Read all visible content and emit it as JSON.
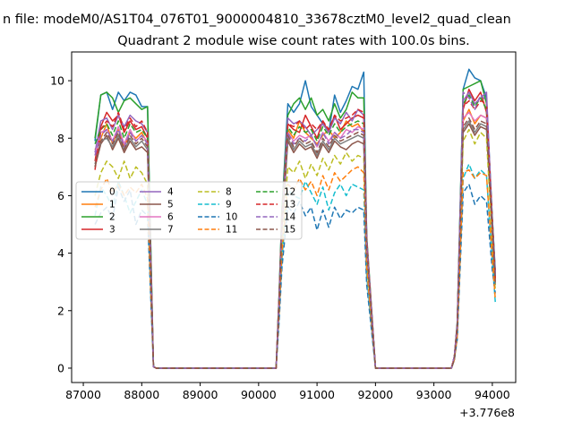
{
  "chart_data": {
    "type": "line",
    "suptitle": "n file: modeM0/AS1T04_076T01_9000004810_33678cztM0_level2_quad_clean",
    "title": "Quadrant 2 module wise count rates with 100.0s bins.",
    "xlabel": "",
    "ylabel": "",
    "x_offset_label": "+3.776e8",
    "xlim": [
      86800,
      94400
    ],
    "ylim": [
      -0.5,
      11.0
    ],
    "x_ticks": [
      87000,
      88000,
      89000,
      90000,
      91000,
      92000,
      93000,
      94000
    ],
    "x_tick_labels": [
      "87000",
      "88000",
      "89000",
      "90000",
      "91000",
      "92000",
      "93000",
      "94000"
    ],
    "y_ticks": [
      0,
      2,
      4,
      6,
      8,
      10
    ],
    "y_tick_labels": [
      "0",
      "2",
      "4",
      "6",
      "8",
      "10"
    ],
    "grid": false,
    "legend_position": "center-left",
    "legend_columns": 4,
    "x": [
      87200,
      87300,
      87400,
      87500,
      87600,
      87700,
      87800,
      87900,
      88000,
      88100,
      88200,
      88250,
      88400,
      89000,
      90000,
      90300,
      90350,
      90400,
      90500,
      90600,
      90700,
      90800,
      90900,
      91000,
      91100,
      91200,
      91300,
      91400,
      91500,
      91600,
      91700,
      91800,
      91850,
      92000,
      92500,
      93000,
      93300,
      93350,
      93400,
      93500,
      93600,
      93700,
      93800,
      93900,
      94000,
      94050
    ],
    "series": [
      {
        "name": "0",
        "color": "#1f77b4",
        "dash": "solid",
        "values": [
          7.9,
          9.5,
          9.6,
          9.0,
          9.6,
          9.3,
          9.6,
          9.5,
          9.1,
          9.1,
          0.05,
          0,
          0,
          0,
          0,
          0,
          2.5,
          5.5,
          9.2,
          8.9,
          9.2,
          10.0,
          9.1,
          8.8,
          8.5,
          8.2,
          9.5,
          8.9,
          9.3,
          9.8,
          9.7,
          10.3,
          4.5,
          0,
          0,
          0,
          0,
          0.4,
          1.6,
          9.7,
          10.4,
          10.1,
          10.0,
          9.4,
          5.2,
          3.4
        ]
      },
      {
        "name": "1",
        "color": "#ff7f0e",
        "dash": "solid",
        "values": [
          7.6,
          8.0,
          8.5,
          7.8,
          8.3,
          7.7,
          8.2,
          8.0,
          8.2,
          7.8,
          0.05,
          0,
          0,
          0,
          0,
          0,
          2.3,
          5.0,
          8.3,
          8.0,
          8.6,
          8.2,
          8.0,
          7.8,
          8.1,
          8.3,
          8.0,
          8.2,
          8.6,
          8.4,
          8.5,
          8.2,
          4.2,
          0,
          0,
          0,
          0,
          0.4,
          1.4,
          8.6,
          9.0,
          8.5,
          8.8,
          8.7,
          4.9,
          3.0
        ]
      },
      {
        "name": "2",
        "color": "#2ca02c",
        "dash": "solid",
        "values": [
          8.0,
          9.5,
          9.6,
          9.4,
          8.9,
          9.3,
          9.4,
          9.2,
          9.0,
          9.1,
          0.05,
          0,
          0,
          0,
          0,
          0,
          2.5,
          5.5,
          8.8,
          9.2,
          9.4,
          9.0,
          9.4,
          8.8,
          9.0,
          8.6,
          9.2,
          8.7,
          9.0,
          9.6,
          9.4,
          9.4,
          4.6,
          0,
          0,
          0,
          0,
          0.4,
          1.5,
          9.7,
          9.8,
          9.9,
          10.0,
          9.2,
          5.2,
          3.3
        ]
      },
      {
        "name": "3",
        "color": "#d62728",
        "dash": "solid",
        "values": [
          7.2,
          8.4,
          8.9,
          8.6,
          8.8,
          8.2,
          8.6,
          8.3,
          8.4,
          8.0,
          0.05,
          0,
          0,
          0,
          0,
          0,
          2.4,
          5.2,
          8.5,
          8.3,
          8.2,
          8.8,
          8.4,
          8.0,
          8.6,
          8.2,
          8.8,
          8.3,
          8.5,
          8.7,
          8.8,
          8.7,
          4.4,
          0,
          0,
          0,
          0,
          0.4,
          1.5,
          9.0,
          9.7,
          9.3,
          9.6,
          8.9,
          5.0,
          3.2
        ]
      },
      {
        "name": "4",
        "color": "#9467bd",
        "dash": "solid",
        "values": [
          7.5,
          8.6,
          8.7,
          8.3,
          8.8,
          8.4,
          8.8,
          8.6,
          8.5,
          8.2,
          0.05,
          0,
          0,
          0,
          0,
          0,
          2.4,
          5.2,
          8.7,
          8.5,
          8.6,
          8.4,
          8.1,
          8.3,
          8.5,
          8.2,
          8.7,
          8.5,
          8.9,
          8.6,
          9.0,
          8.8,
          4.5,
          0,
          0,
          0,
          0,
          0.4,
          1.5,
          9.3,
          9.6,
          9.2,
          9.4,
          9.6,
          5.0,
          3.3
        ]
      },
      {
        "name": "5",
        "color": "#8c564b",
        "dash": "solid",
        "values": [
          7.0,
          7.8,
          8.1,
          7.6,
          8.0,
          7.5,
          7.9,
          7.6,
          7.7,
          7.5,
          0.05,
          0,
          0,
          0,
          0,
          0,
          2.2,
          4.8,
          7.9,
          7.5,
          7.8,
          7.6,
          7.7,
          7.3,
          7.8,
          7.5,
          7.9,
          7.7,
          7.6,
          7.8,
          7.9,
          7.8,
          4.0,
          0,
          0,
          0,
          0,
          0.3,
          1.4,
          8.2,
          8.5,
          8.1,
          8.4,
          8.3,
          4.6,
          2.9
        ]
      },
      {
        "name": "6",
        "color": "#e377c2",
        "dash": "solid",
        "values": [
          7.4,
          8.2,
          8.3,
          7.9,
          8.4,
          7.8,
          8.3,
          7.9,
          8.1,
          7.9,
          0.05,
          0,
          0,
          0,
          0,
          0,
          2.3,
          5.0,
          8.2,
          7.9,
          8.1,
          8.0,
          8.1,
          7.7,
          8.2,
          7.9,
          8.2,
          8.0,
          8.3,
          8.2,
          8.4,
          8.3,
          4.2,
          0,
          0,
          0,
          0,
          0.4,
          1.4,
          8.7,
          8.9,
          8.6,
          8.8,
          8.7,
          4.8,
          3.0
        ]
      },
      {
        "name": "7",
        "color": "#7f7f7f",
        "dash": "solid",
        "values": [
          7.1,
          7.9,
          8.0,
          7.7,
          8.1,
          7.6,
          8.0,
          7.7,
          7.9,
          7.6,
          0.05,
          0,
          0,
          0,
          0,
          0,
          2.2,
          4.9,
          8.0,
          7.6,
          7.9,
          7.7,
          7.8,
          7.4,
          7.9,
          7.6,
          8.0,
          7.8,
          7.9,
          8.0,
          8.1,
          8.0,
          4.1,
          0,
          0,
          0,
          0,
          0.3,
          1.4,
          8.3,
          8.6,
          8.2,
          8.5,
          8.4,
          4.7,
          2.9
        ]
      },
      {
        "name": "8",
        "color": "#bcbd22",
        "dash": "dashed",
        "values": [
          6.0,
          6.8,
          7.2,
          7.0,
          6.6,
          7.2,
          6.6,
          7.0,
          6.8,
          6.4,
          0.05,
          0,
          0,
          0,
          0,
          0,
          2.0,
          4.2,
          7.0,
          6.8,
          7.2,
          6.6,
          7.1,
          6.7,
          7.3,
          6.9,
          7.4,
          7.1,
          7.5,
          7.2,
          7.4,
          7.3,
          3.7,
          0,
          0,
          0,
          0,
          0.3,
          1.2,
          7.9,
          8.3,
          7.8,
          8.2,
          8.0,
          4.3,
          2.7
        ]
      },
      {
        "name": "9",
        "color": "#17becf",
        "dash": "dashed",
        "values": [
          5.3,
          6.3,
          6.0,
          5.6,
          6.5,
          6.0,
          5.4,
          5.8,
          6.2,
          5.7,
          0.05,
          0,
          0,
          0,
          0,
          0,
          1.8,
          3.8,
          6.2,
          6.0,
          5.9,
          6.5,
          6.1,
          5.7,
          6.3,
          5.5,
          6.1,
          6.4,
          6.0,
          6.4,
          6.3,
          6.2,
          3.2,
          0,
          0,
          0,
          0,
          0.3,
          1.1,
          6.6,
          7.1,
          6.6,
          6.9,
          6.7,
          3.7,
          2.3
        ]
      },
      {
        "name": "10",
        "color": "#1f77b4",
        "dash": "dashed",
        "values": [
          5.0,
          5.4,
          5.6,
          5.2,
          6.3,
          5.8,
          6.2,
          5.0,
          5.5,
          5.3,
          0.05,
          0,
          0,
          0,
          0,
          0,
          1.6,
          3.5,
          5.6,
          5.4,
          5.8,
          5.3,
          5.6,
          4.8,
          5.5,
          4.9,
          5.6,
          5.2,
          5.5,
          5.4,
          5.6,
          5.5,
          2.9,
          0,
          0,
          0,
          0,
          0.3,
          1.0,
          6.1,
          6.4,
          5.7,
          6.0,
          5.8,
          3.4,
          2.6
        ]
      },
      {
        "name": "11",
        "color": "#ff7f0e",
        "dash": "dashed",
        "values": [
          5.6,
          6.2,
          6.6,
          6.1,
          6.4,
          6.0,
          6.3,
          6.1,
          6.4,
          5.9,
          0.05,
          0,
          0,
          0,
          0,
          0,
          1.9,
          4.0,
          6.4,
          6.2,
          6.6,
          6.2,
          6.5,
          6.0,
          6.7,
          6.2,
          6.8,
          6.5,
          6.7,
          6.9,
          7.0,
          6.8,
          3.5,
          0,
          0,
          0,
          0,
          0.3,
          1.1,
          6.8,
          6.9,
          6.6,
          6.8,
          6.7,
          3.8,
          2.4
        ]
      },
      {
        "name": "12",
        "color": "#2ca02c",
        "dash": "dashed",
        "values": [
          7.8,
          8.3,
          8.5,
          8.1,
          8.6,
          8.0,
          8.5,
          8.2,
          8.3,
          8.0,
          0.05,
          0,
          0,
          0,
          0,
          0,
          2.4,
          5.1,
          8.4,
          8.1,
          8.4,
          8.2,
          8.3,
          7.9,
          8.4,
          8.1,
          8.5,
          8.2,
          8.4,
          8.5,
          8.6,
          8.5,
          4.3,
          0,
          0,
          0,
          0,
          0.4,
          1.5,
          9.2,
          9.5,
          9.1,
          9.4,
          9.0,
          5.0,
          3.1
        ]
      },
      {
        "name": "13",
        "color": "#d62728",
        "dash": "dashed",
        "values": [
          6.9,
          8.3,
          8.6,
          8.4,
          8.9,
          8.3,
          8.7,
          8.4,
          8.6,
          8.2,
          0.05,
          0,
          0,
          0,
          0,
          0,
          2.4,
          5.1,
          8.5,
          8.4,
          8.6,
          8.3,
          8.5,
          8.3,
          8.6,
          8.3,
          8.8,
          8.6,
          8.7,
          8.8,
          9.0,
          8.9,
          4.4,
          0,
          0,
          0,
          0,
          0.4,
          1.5,
          9.1,
          9.3,
          9.0,
          9.3,
          9.2,
          5.1,
          3.1
        ]
      },
      {
        "name": "14",
        "color": "#9467bd",
        "dash": "dashed",
        "values": [
          7.4,
          8.1,
          8.3,
          7.9,
          8.3,
          7.7,
          8.2,
          7.9,
          8.1,
          7.8,
          0.05,
          0,
          0,
          0,
          0,
          0,
          2.3,
          5.0,
          8.2,
          7.8,
          8.0,
          7.9,
          8.1,
          7.7,
          8.2,
          7.8,
          8.2,
          8.0,
          8.1,
          8.3,
          8.3,
          8.2,
          4.2,
          0,
          0,
          0,
          0,
          0.4,
          1.4,
          9.6,
          9.4,
          9.0,
          9.5,
          9.3,
          5.0,
          3.2
        ]
      },
      {
        "name": "15",
        "color": "#8c564b",
        "dash": "dashed",
        "values": [
          7.0,
          7.9,
          8.2,
          7.8,
          8.2,
          7.6,
          8.1,
          7.8,
          8.0,
          7.7,
          0.05,
          0,
          0,
          0,
          0,
          0,
          2.2,
          4.9,
          8.1,
          7.7,
          8.0,
          7.8,
          7.9,
          7.5,
          8.0,
          7.7,
          8.1,
          7.9,
          8.0,
          8.1,
          8.2,
          8.1,
          4.1,
          0,
          0,
          0,
          0,
          0.3,
          1.4,
          8.4,
          8.7,
          8.3,
          8.6,
          8.5,
          4.7,
          3.0
        ]
      }
    ]
  }
}
